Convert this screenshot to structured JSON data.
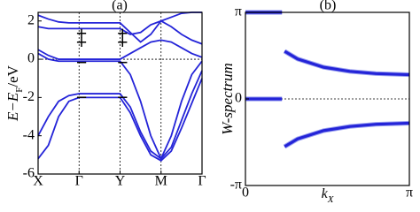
{
  "chart_data": [
    {
      "type": "line",
      "title": "(a)",
      "ylabel": [
        "E",
        "−E",
        "F",
        "/eV"
      ],
      "x": [
        0,
        0.25,
        0.5,
        0.75,
        1,
        1.25,
        1.5,
        1.75,
        2,
        2.25,
        2.5,
        2.75,
        3,
        3.25,
        3.5,
        3.75,
        4
      ],
      "xlim": [
        0,
        4
      ],
      "xticks": [
        {
          "value": 0,
          "label": "X"
        },
        {
          "value": 1,
          "label": "Γ"
        },
        {
          "value": 2,
          "label": "Y"
        },
        {
          "value": 3,
          "label": "M"
        },
        {
          "value": 4,
          "label": "Γ"
        }
      ],
      "ylim": [
        -6,
        2.45
      ],
      "yticks": [
        -6,
        -4,
        -2,
        0,
        2
      ],
      "hlines": [
        0
      ],
      "vlines": [
        1,
        2,
        3
      ],
      "series": [
        {
          "color": "#2424d8",
          "values": [
            2.3,
            2.1,
            1.95,
            1.9,
            1.9,
            1.9,
            1.9,
            1.9,
            1.9,
            1.4,
            0.9,
            1.3,
            2.0,
            2.2,
            2.4,
            2.45,
            2.45
          ]
        },
        {
          "color": "#2424d8",
          "values": [
            1.7,
            1.6,
            1.6,
            1.6,
            1.6,
            1.6,
            1.6,
            1.6,
            1.6,
            1.3,
            1.4,
            1.8,
            2.0,
            1.7,
            1.3,
            1.0,
            0.8
          ]
        },
        {
          "color": "#2424d8",
          "values": [
            0.5,
            0.2,
            0.0,
            0.0,
            0.0,
            0.0,
            0.0,
            0.0,
            0.0,
            0.3,
            0.6,
            0.9,
            1.0,
            0.9,
            0.6,
            0.3,
            0.1
          ]
        },
        {
          "color": "#2424d8",
          "values": [
            0.3,
            0.0,
            -0.1,
            -0.1,
            -0.1,
            -0.1,
            -0.1,
            -0.1,
            -0.1,
            -0.8,
            -2.2,
            -4.0,
            -5.2,
            -4.0,
            -2.2,
            -0.8,
            -0.1
          ]
        },
        {
          "color": "#2424d8",
          "values": [
            -4.0,
            -3.0,
            -2.2,
            -1.9,
            -1.8,
            -1.8,
            -1.8,
            -1.8,
            -1.8,
            -2.5,
            -3.8,
            -4.8,
            -5.2,
            -4.6,
            -3.2,
            -1.8,
            -0.6
          ]
        },
        {
          "color": "#2424d8",
          "values": [
            -5.2,
            -4.5,
            -3.0,
            -2.2,
            -2.0,
            -2.0,
            -2.0,
            -2.0,
            -2.0,
            -2.8,
            -4.0,
            -5.0,
            -5.3,
            -4.8,
            -3.6,
            -2.3,
            -1.0
          ]
        }
      ],
      "annotations": [
        {
          "text": "+",
          "x": 1.06,
          "y": 1.26
        },
        {
          "text": "+",
          "x": 1.06,
          "y": 0.8
        },
        {
          "text": "−",
          "x": 1.06,
          "y": -0.28
        },
        {
          "text": "−",
          "x": 1.06,
          "y": -2.1
        },
        {
          "text": "+",
          "x": 2.06,
          "y": 1.26
        },
        {
          "text": "+",
          "x": 2.06,
          "y": 0.8
        },
        {
          "text": "−",
          "x": 2.06,
          "y": -0.28
        },
        {
          "text": "−",
          "x": 2.06,
          "y": -2.1
        }
      ]
    },
    {
      "type": "scatter-line",
      "title": "(b)",
      "ylabel": [
        "W-spectrum"
      ],
      "xlabel": [
        "k",
        "X"
      ],
      "xlim": [
        0,
        3.14159
      ],
      "xticks": [
        0,
        {
          "value": 3.14159,
          "label": "π"
        }
      ],
      "ylim": [
        -3.14159,
        3.14159
      ],
      "yticks": [
        {
          "value": -3.14159,
          "label": "-π"
        },
        0,
        {
          "value": 3.14159,
          "label": "π"
        }
      ],
      "hlines": [
        0
      ],
      "series": [
        {
          "color": "#2424d8",
          "x": [
            0,
            0.7
          ],
          "values": [
            3.14159,
            3.14159
          ]
        },
        {
          "color": "#2424d8",
          "x": [
            0,
            0.7
          ],
          "values": [
            0,
            0
          ]
        },
        {
          "color": "#2424d8",
          "x": [
            0.75,
            1.0,
            1.5,
            2.0,
            2.5,
            3.14159
          ],
          "values": [
            1.73,
            1.45,
            1.15,
            1.0,
            0.92,
            0.88
          ]
        },
        {
          "color": "#2424d8",
          "x": [
            0.75,
            1.0,
            1.5,
            2.0,
            2.5,
            3.14159
          ],
          "values": [
            -1.73,
            -1.45,
            -1.15,
            -1.0,
            -0.92,
            -0.88
          ]
        }
      ]
    }
  ]
}
